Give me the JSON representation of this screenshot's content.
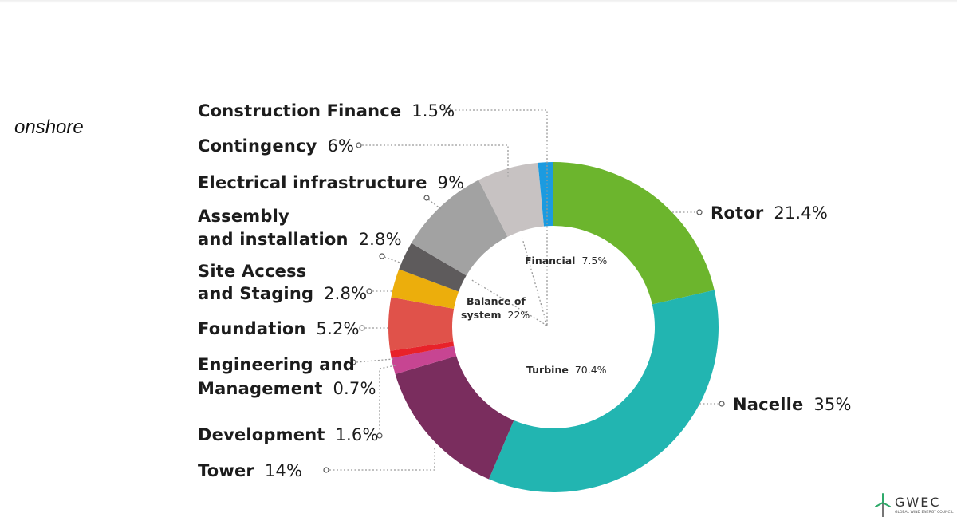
{
  "page": {
    "label": "onshore"
  },
  "colors": {
    "rotor": "#6cb52d",
    "nacelle": "#22b5b1",
    "tower": "#7a2d5e",
    "development": "#c74592",
    "engineering": "#e8222a",
    "foundation": "#e0524a",
    "site_access": "#ecae0c",
    "assembly": "#5e5b5c",
    "electrical": "#a2a2a2",
    "contingency": "#c7c2c2",
    "construction_finance": "#1b9be0"
  },
  "chart_data": {
    "type": "pie",
    "style": "donut",
    "series": [
      {
        "key": "rotor",
        "name": "Rotor",
        "value": 21.4,
        "pct_label": "21.4%"
      },
      {
        "key": "nacelle",
        "name": "Nacelle",
        "value": 35,
        "pct_label": "35%"
      },
      {
        "key": "tower",
        "name": "Tower",
        "value": 14,
        "pct_label": "14%"
      },
      {
        "key": "development",
        "name": "Development",
        "value": 1.6,
        "pct_label": "1.6%"
      },
      {
        "key": "engineering",
        "name": "Engineering and Management",
        "value": 0.7,
        "pct_label": "0.7%"
      },
      {
        "key": "foundation",
        "name": "Foundation",
        "value": 5.2,
        "pct_label": "5.2%"
      },
      {
        "key": "site_access",
        "name": "Site Access and Staging",
        "value": 2.8,
        "pct_label": "2.8%"
      },
      {
        "key": "assembly",
        "name": "Assembly and installation",
        "value": 2.8,
        "pct_label": "2.8%"
      },
      {
        "key": "electrical",
        "name": "Electrical infrastructure",
        "value": 9,
        "pct_label": "9%"
      },
      {
        "key": "contingency",
        "name": "Contingency",
        "value": 6,
        "pct_label": "6%"
      },
      {
        "key": "construction_finance",
        "name": "Construction Finance",
        "value": 1.5,
        "pct_label": "1.5%"
      }
    ],
    "groups": [
      {
        "key": "turbine",
        "name": "Turbine",
        "value": 70.4,
        "pct_label": "70.4%"
      },
      {
        "key": "bos",
        "name": "Balance of system",
        "value": 22,
        "pct_label": "22%"
      },
      {
        "key": "financial",
        "name": "Financial",
        "value": 7.5,
        "pct_label": "7.5%"
      }
    ]
  },
  "labels": {
    "construction_finance": {
      "name": "Construction Finance",
      "pct": "1.5%"
    },
    "contingency": {
      "name": "Contingency",
      "pct": "6%"
    },
    "electrical": {
      "name": "Electrical infrastructure",
      "pct": "9%"
    },
    "assembly": {
      "line1": "Assembly",
      "line2": "and installation",
      "pct": "2.8%"
    },
    "site_access": {
      "line1": "Site Access",
      "line2": "and Staging",
      "pct": "2.8%"
    },
    "foundation": {
      "name": "Foundation",
      "pct": "5.2%"
    },
    "engineering": {
      "line1": "Engineering and",
      "line2": "Management",
      "pct": "0.7%"
    },
    "development": {
      "name": "Development",
      "pct": "1.6%"
    },
    "tower": {
      "name": "Tower",
      "pct": "14%"
    },
    "rotor": {
      "name": "Rotor",
      "pct": "21.4%"
    },
    "nacelle": {
      "name": "Nacelle",
      "pct": "35%"
    },
    "inner_financial": {
      "name": "Financial",
      "pct": "7.5%"
    },
    "inner_bos": {
      "line1": "Balance of",
      "line2": "system",
      "pct": "22%"
    },
    "inner_turbine": {
      "name": "Turbine",
      "pct": "70.4%"
    }
  },
  "logo": {
    "text": "GWEC",
    "subtitle": "GLOBAL WIND ENERGY COUNCIL"
  }
}
